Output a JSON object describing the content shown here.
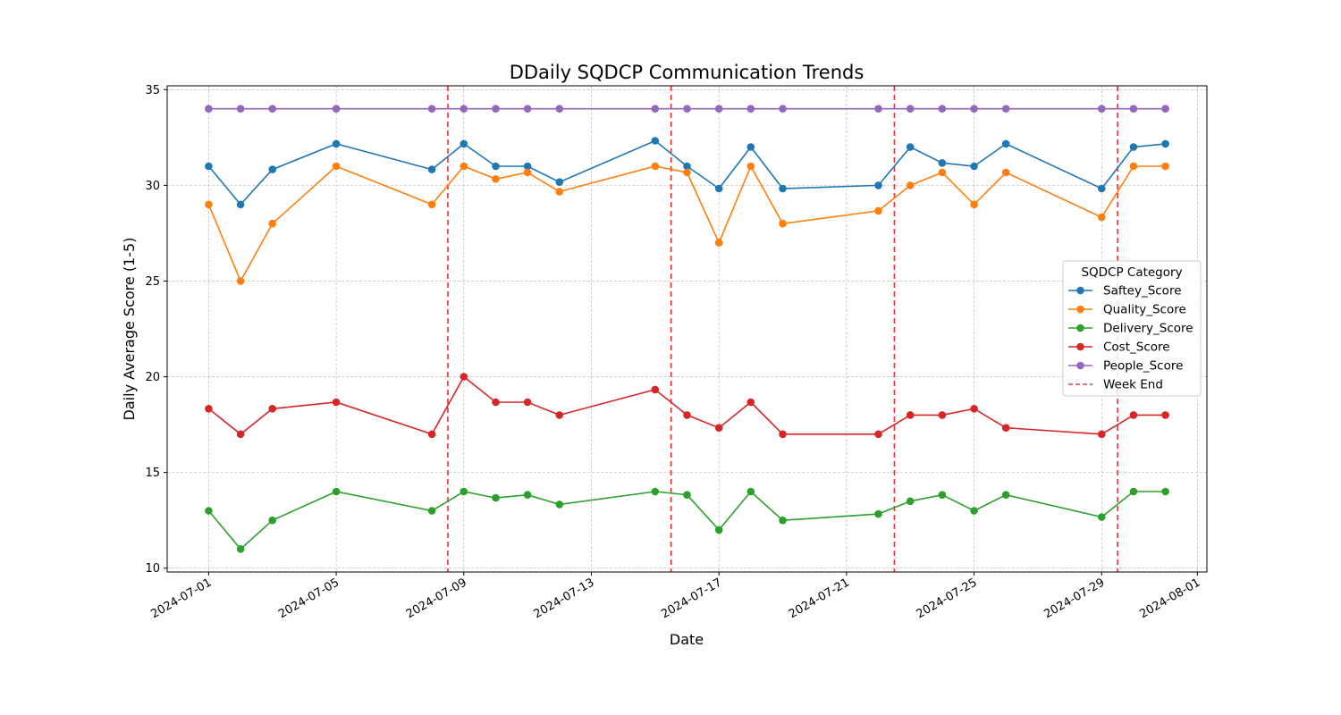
{
  "chart_data": {
    "type": "line",
    "title": "DDaily SQDCP Communication Trends",
    "xlabel": "Date",
    "ylabel": "Daily Average Score (1-5)",
    "ylim": [
      10,
      35
    ],
    "xlim": [
      "2024-06-29",
      "2024-08-01"
    ],
    "grid": true,
    "yticks": [
      10,
      15,
      20,
      25,
      30,
      35
    ],
    "xticks": [
      "2024-07-01",
      "2024-07-05",
      "2024-07-09",
      "2024-07-13",
      "2024-07-17",
      "2024-07-21",
      "2024-07-25",
      "2024-07-29",
      "2024-08-01"
    ],
    "x": [
      "2024-07-01",
      "2024-07-02",
      "2024-07-03",
      "2024-07-05",
      "2024-07-08",
      "2024-07-09",
      "2024-07-10",
      "2024-07-11",
      "2024-07-12",
      "2024-07-15",
      "2024-07-16",
      "2024-07-17",
      "2024-07-18",
      "2024-07-19",
      "2024-07-22",
      "2024-07-23",
      "2024-07-24",
      "2024-07-25",
      "2024-07-26",
      "2024-07-29",
      "2024-07-30",
      "2024-07-31"
    ],
    "series": [
      {
        "name": "Saftey_Score",
        "color": "#1f77b4",
        "values": [
          31,
          29,
          30.83,
          32.17,
          30.83,
          32.17,
          31,
          31,
          30.17,
          32.33,
          31,
          29.83,
          32,
          29.83,
          30,
          32,
          31.17,
          31,
          32.17,
          29.83,
          32,
          32.17
        ]
      },
      {
        "name": "Quality_Score",
        "color": "#ff7f0e",
        "values": [
          29,
          25,
          28,
          31,
          29,
          31,
          30.33,
          30.67,
          29.67,
          31,
          30.67,
          27,
          31,
          28,
          28.67,
          30,
          30.67,
          29,
          30.67,
          28.33,
          31,
          31
        ]
      },
      {
        "name": "Delivery_Score",
        "color": "#2ca02c",
        "values": [
          13,
          11,
          12.5,
          14,
          13,
          14,
          13.67,
          13.83,
          13.33,
          14,
          13.83,
          12,
          14,
          12.5,
          12.83,
          13.5,
          13.83,
          13,
          13.83,
          12.67,
          14,
          14
        ]
      },
      {
        "name": "Cost_Score",
        "color": "#d62728",
        "values": [
          18.33,
          17,
          18.33,
          18.67,
          17,
          20,
          18.67,
          18.67,
          18,
          19.33,
          18,
          17.33,
          18.67,
          17,
          17,
          18,
          18,
          18.33,
          17.33,
          17,
          18,
          18
        ]
      },
      {
        "name": "People_Score",
        "color": "#9467bd",
        "values": [
          34,
          34,
          34,
          34,
          34,
          34,
          34,
          34,
          34,
          34,
          34,
          34,
          34,
          34,
          34,
          34,
          34,
          34,
          34,
          34,
          34,
          34
        ]
      }
    ],
    "week_ends": [
      "2024-07-08 12:00",
      "2024-07-15 12:00",
      "2024-07-22 12:00",
      "2024-07-29 12:00"
    ],
    "week_end_label": "Week End",
    "week_end_color": "#ee3333",
    "legend": {
      "title": "SQDCP Category",
      "placement": "center-right"
    }
  }
}
